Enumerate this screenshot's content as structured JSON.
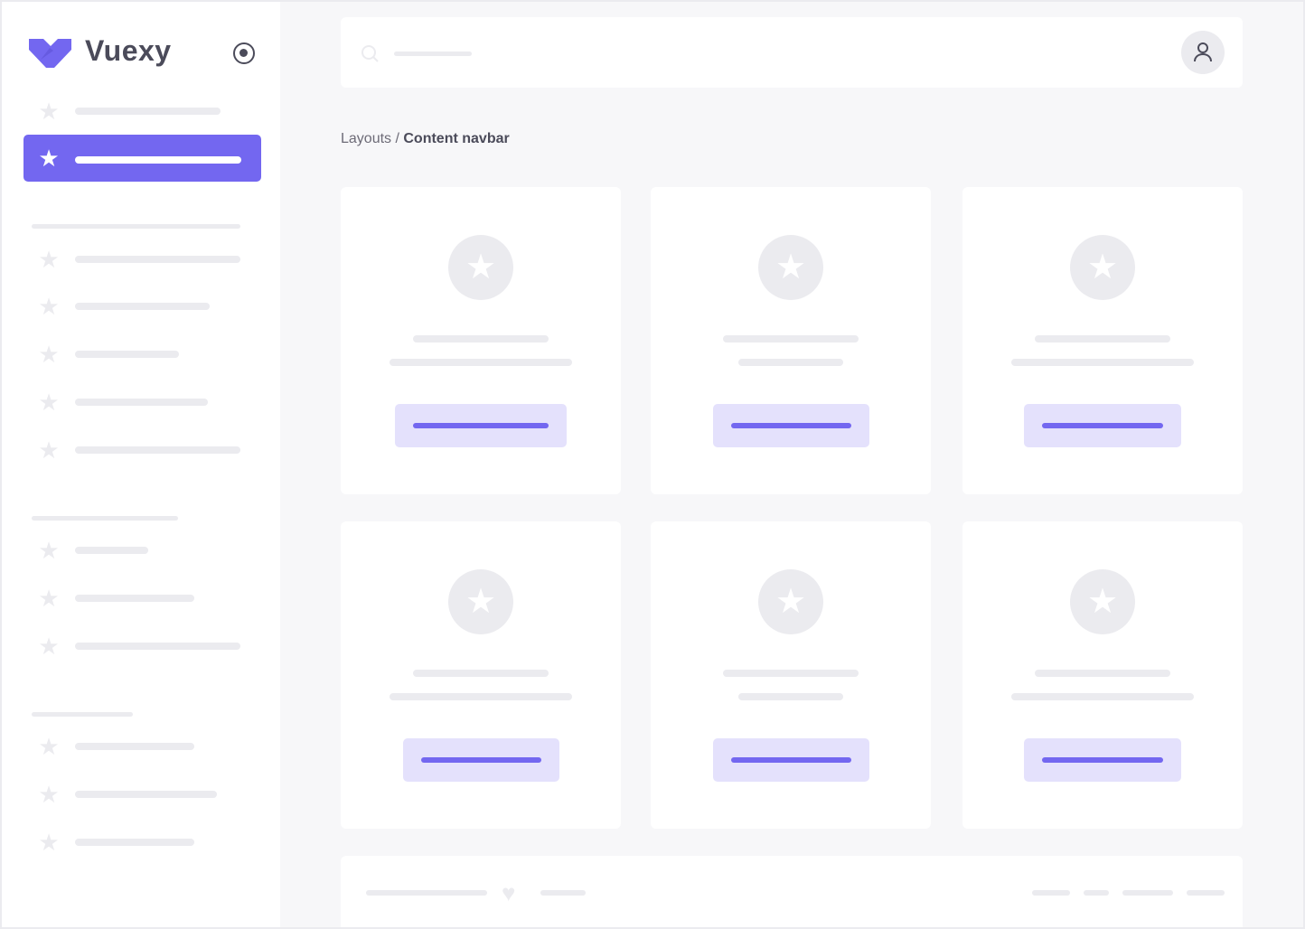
{
  "brand": {
    "name": "Vuexy",
    "logo_icon": "vuexy-logo",
    "toggle_icon": "radio-target-icon"
  },
  "colors": {
    "primary": "#7367f0",
    "primary_light": "#e4e1fc",
    "skeleton": "#ebebef",
    "background": "#f7f7f9",
    "text": "#4b4b5a"
  },
  "navbar": {
    "search_icon": "search-icon",
    "avatar_icon": "user-icon"
  },
  "breadcrumb": {
    "parent": "Layouts / ",
    "current": "Content navbar"
  },
  "sidebar": {
    "active_index": 1,
    "item_icon": "star-icon"
  },
  "footer": {
    "icon": "heart-icon"
  }
}
